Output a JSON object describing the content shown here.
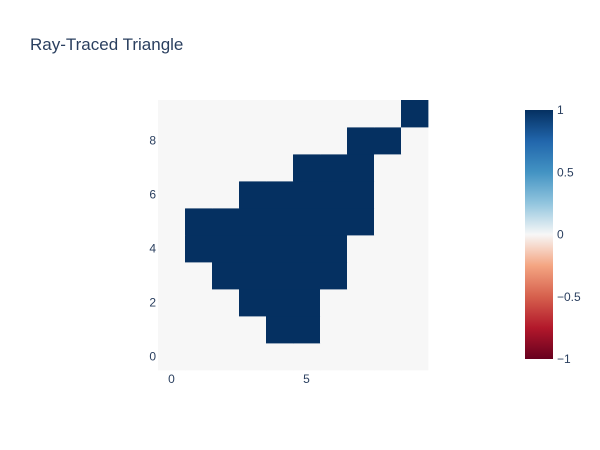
{
  "chart_data": {
    "type": "heatmap",
    "title": "Ray-Traced Triangle",
    "xlabel": "",
    "ylabel": "",
    "x": [
      0,
      1,
      2,
      3,
      4,
      5,
      6,
      7,
      8,
      9
    ],
    "y": [
      0,
      1,
      2,
      3,
      4,
      5,
      6,
      7,
      8,
      9
    ],
    "xlim": [
      -0.5,
      9.5
    ],
    "ylim": [
      -0.5,
      9.5
    ],
    "x_ticks": [
      0,
      5
    ],
    "y_ticks": [
      0,
      2,
      4,
      6,
      8
    ],
    "colorscale": "RdBu",
    "zlim": [
      -1,
      1
    ],
    "colorbar_ticks": [
      1,
      0.5,
      0,
      -0.5,
      -1
    ],
    "colorbar_tick_labels": [
      "1",
      "0.5",
      "0",
      "−0.5",
      "−1"
    ],
    "z": [
      [
        0,
        0,
        0,
        0,
        0,
        0,
        0,
        0,
        0,
        0
      ],
      [
        0,
        0,
        0,
        0,
        1,
        1,
        0,
        0,
        0,
        0
      ],
      [
        0,
        0,
        0,
        1,
        1,
        1,
        0,
        0,
        0,
        0
      ],
      [
        0,
        0,
        1,
        1,
        1,
        1,
        1,
        0,
        0,
        0
      ],
      [
        0,
        1,
        1,
        1,
        1,
        1,
        1,
        0,
        0,
        0
      ],
      [
        0,
        1,
        1,
        1,
        1,
        1,
        1,
        1,
        0,
        0
      ],
      [
        0,
        0,
        0,
        1,
        1,
        1,
        1,
        1,
        0,
        0
      ],
      [
        0,
        0,
        0,
        0,
        0,
        1,
        1,
        1,
        0,
        0
      ],
      [
        0,
        0,
        0,
        0,
        0,
        0,
        0,
        1,
        1,
        0
      ],
      [
        0,
        0,
        0,
        0,
        0,
        0,
        0,
        0,
        0,
        1
      ]
    ],
    "colors": {
      "positive": "#053061",
      "zero": "#f7f7f7",
      "negative": "#67001f",
      "text": "#2a3f5f"
    }
  }
}
